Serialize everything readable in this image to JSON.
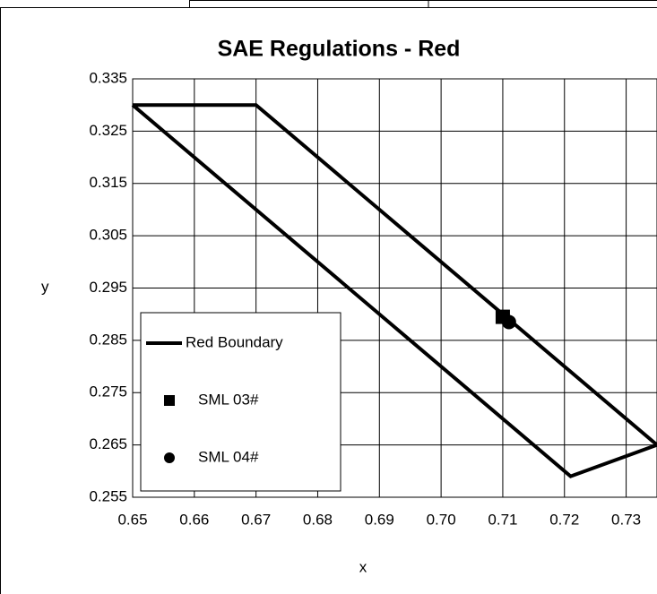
{
  "chart_data": {
    "type": "line",
    "title": "SAE Regulations - Red",
    "x_label": "x",
    "y_label": "y",
    "series": [
      {
        "name": "Red Boundary",
        "color": "#000000",
        "marker": "none",
        "x": [
          0.65,
          0.67,
          0.735,
          0.721,
          0.65
        ],
        "values": [
          0.33,
          0.33,
          0.265,
          0.259,
          0.33
        ]
      },
      {
        "name": "SML 03#",
        "color": "#000000",
        "marker": "square",
        "x": [
          0.71
        ],
        "values": [
          0.2895
        ]
      },
      {
        "name": "SML 04#",
        "color": "#000000",
        "marker": "circle",
        "x": [
          0.711
        ],
        "values": [
          0.2885
        ]
      }
    ],
    "xlim": [
      0.65,
      0.735
    ],
    "xticks": [
      {
        "value": 0.65,
        "label": "0.65"
      },
      {
        "value": 0.66,
        "label": "0.66"
      },
      {
        "value": 0.67,
        "label": "0.67"
      },
      {
        "value": 0.68,
        "label": "0.68"
      },
      {
        "value": 0.69,
        "label": "0.69"
      },
      {
        "value": 0.7,
        "label": "0.70"
      },
      {
        "value": 0.71,
        "label": "0.71"
      },
      {
        "value": 0.72,
        "label": "0.72"
      },
      {
        "value": 0.73,
        "label": "0.73"
      }
    ],
    "ylim": [
      0.255,
      0.335
    ],
    "yticks": [
      0.255,
      0.265,
      0.275,
      0.285,
      0.295,
      0.305,
      0.315,
      0.325,
      0.335
    ],
    "grid": true,
    "legend": "lower left"
  }
}
